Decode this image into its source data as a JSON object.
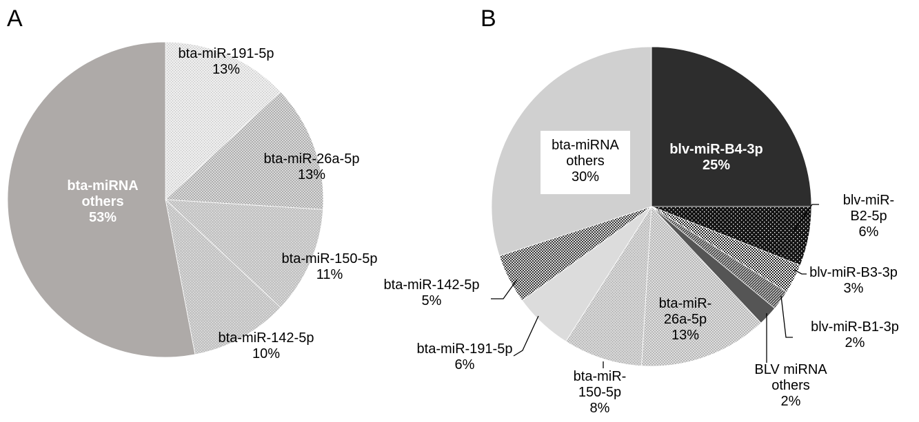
{
  "chart_data": [
    {
      "panel": "A",
      "type": "pie",
      "start": "top",
      "direction": "clockwise",
      "slices": [
        {
          "name_lines": [
            "bta-miR-191-5p"
          ],
          "percent_label": "13%",
          "value": 13,
          "fill": "dots",
          "base": "#ebebeb",
          "ink": "#b8b8b8"
        },
        {
          "name_lines": [
            "bta-miR-26a-5p"
          ],
          "percent_label": "13%",
          "value": 13,
          "fill": "cross",
          "base": "#e3e3e3",
          "ink": "#9c9c9c"
        },
        {
          "name_lines": [
            "bta-miR-150-5p"
          ],
          "percent_label": "11%",
          "value": 11,
          "fill": "whitedots",
          "base": "#c4c4c4",
          "ink": "#f4f4f4"
        },
        {
          "name_lines": [
            "bta-miR-142-5p"
          ],
          "percent_label": "10%",
          "value": 10,
          "fill": "whitedots",
          "base": "#c4c4c4",
          "ink": "#f4f4f4"
        },
        {
          "name_lines": [
            "bta-miRNA",
            "others"
          ],
          "percent_label": "53%",
          "value": 53,
          "fill": "solid",
          "base": "#aeaaa8",
          "ink": "#aeaaa8",
          "label_color": "#ffffff",
          "bold": true
        }
      ]
    },
    {
      "panel": "B",
      "type": "pie",
      "start": "top",
      "direction": "clockwise",
      "slices": [
        {
          "name_lines": [
            "blv-miR-B4-3p"
          ],
          "percent_label": "25%",
          "value": 25,
          "fill": "solid",
          "base": "#2d2d2d",
          "ink": "#2d2d2d",
          "label_color": "#ffffff",
          "bold": true
        },
        {
          "name_lines": [
            "blv-miR-",
            "B2-5p"
          ],
          "percent_label": "6%",
          "value": 6,
          "fill": "blackdots",
          "base": "#141414",
          "ink": "#ffffff"
        },
        {
          "name_lines": [
            "blv-miR-B3-3p"
          ],
          "percent_label": "3%",
          "value": 3,
          "fill": "checker",
          "base": "#1e1e1e",
          "ink": "#ffffff"
        },
        {
          "name_lines": [
            "blv-miR-B1-3p"
          ],
          "percent_label": "2%",
          "value": 2,
          "fill": "diag",
          "base": "#4a4a4a",
          "ink": "#ffffff"
        },
        {
          "name_lines": [
            "BLV miRNA",
            "others"
          ],
          "percent_label": "2%",
          "value": 2,
          "fill": "solid",
          "base": "#555555",
          "ink": "#555555"
        },
        {
          "name_lines": [
            "bta-miR-",
            "26a-5p"
          ],
          "percent_label": "13%",
          "value": 13,
          "fill": "cross",
          "base": "#e8e8e8",
          "ink": "#a5a5a5"
        },
        {
          "name_lines": [
            "bta-miR-",
            "150-5p"
          ],
          "percent_label": "8%",
          "value": 8,
          "fill": "dots",
          "base": "#d2d2d2",
          "ink": "#9a9a9a"
        },
        {
          "name_lines": [
            "bta-miR-191-5p"
          ],
          "percent_label": "6%",
          "value": 6,
          "fill": "solid",
          "base": "#dcdcdc",
          "ink": "#dcdcdc"
        },
        {
          "name_lines": [
            "bta-miR-142-5p"
          ],
          "percent_label": "5%",
          "value": 5,
          "fill": "checker",
          "base": "#3a3a3a",
          "ink": "#dddddd"
        },
        {
          "name_lines": [
            "bta-miRNA",
            "others"
          ],
          "percent_label": "30%",
          "value": 30,
          "fill": "solid",
          "base": "#d0d0d0",
          "ink": "#d0d0d0",
          "label_box": true
        }
      ]
    }
  ]
}
